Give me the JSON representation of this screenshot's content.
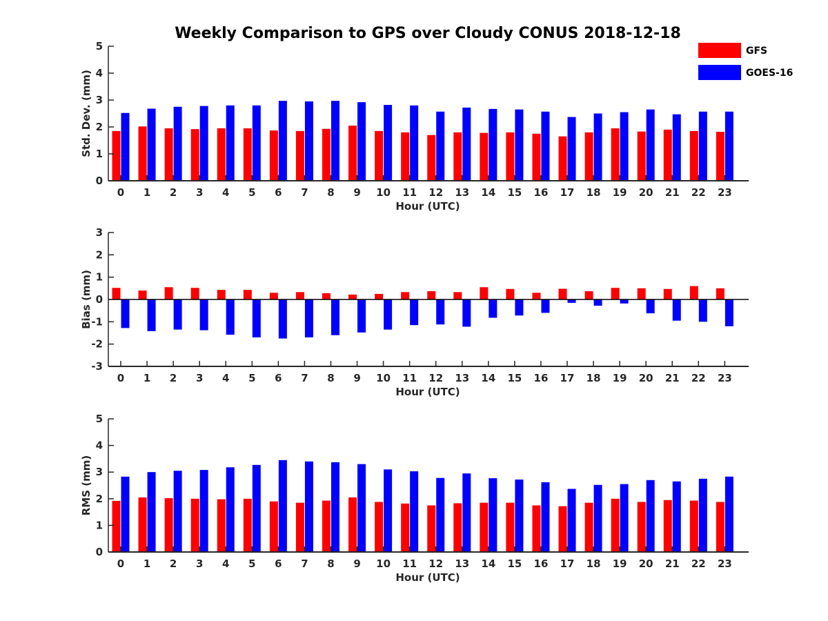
{
  "figure": {
    "title": "Weekly Comparison to GPS over Cloudy CONUS 2018-12-18"
  },
  "legend": {
    "items": [
      {
        "label": "GFS",
        "color": "#ff0000"
      },
      {
        "label": "GOES-16",
        "color": "#0000ff"
      }
    ],
    "position": "top-right"
  },
  "chart_data": [
    {
      "type": "bar",
      "xlabel": "Hour (UTC)",
      "ylabel": "Std. Dev. (mm)",
      "ylim": [
        0,
        5
      ],
      "yticks": [
        0,
        1,
        2,
        3,
        4,
        5
      ],
      "categories": [
        "0",
        "1",
        "2",
        "3",
        "4",
        "5",
        "6",
        "7",
        "8",
        "9",
        "10",
        "11",
        "12",
        "13",
        "14",
        "15",
        "16",
        "17",
        "18",
        "19",
        "20",
        "21",
        "22",
        "23"
      ],
      "series": [
        {
          "name": "GFS",
          "color": "#ff0000",
          "values": [
            1.85,
            2.02,
            1.95,
            1.92,
            1.95,
            1.95,
            1.87,
            1.85,
            1.93,
            2.05,
            1.85,
            1.8,
            1.7,
            1.8,
            1.78,
            1.8,
            1.75,
            1.65,
            1.8,
            1.95,
            1.83,
            1.9,
            1.85,
            1.82
          ]
        },
        {
          "name": "GOES-16",
          "color": "#0000ff",
          "values": [
            2.52,
            2.68,
            2.75,
            2.78,
            2.8,
            2.8,
            2.97,
            2.95,
            2.97,
            2.92,
            2.82,
            2.8,
            2.57,
            2.72,
            2.67,
            2.65,
            2.57,
            2.37,
            2.5,
            2.55,
            2.65,
            2.47,
            2.57,
            2.57
          ]
        }
      ]
    },
    {
      "type": "bar",
      "xlabel": "Hour (UTC)",
      "ylabel": "Bias (mm)",
      "ylim": [
        -3,
        3
      ],
      "yticks": [
        -3,
        -2,
        -1,
        0,
        1,
        2,
        3
      ],
      "categories": [
        "0",
        "1",
        "2",
        "3",
        "4",
        "5",
        "6",
        "7",
        "8",
        "9",
        "10",
        "11",
        "12",
        "13",
        "14",
        "15",
        "16",
        "17",
        "18",
        "19",
        "20",
        "21",
        "22",
        "23"
      ],
      "series": [
        {
          "name": "GFS",
          "color": "#ff0000",
          "values": [
            0.52,
            0.4,
            0.55,
            0.52,
            0.43,
            0.43,
            0.3,
            0.33,
            0.28,
            0.22,
            0.25,
            0.33,
            0.37,
            0.33,
            0.55,
            0.47,
            0.3,
            0.48,
            0.37,
            0.52,
            0.5,
            0.47,
            0.6,
            0.5
          ]
        },
        {
          "name": "GOES-16",
          "color": "#0000ff",
          "values": [
            -1.28,
            -1.42,
            -1.35,
            -1.38,
            -1.58,
            -1.7,
            -1.75,
            -1.7,
            -1.6,
            -1.48,
            -1.35,
            -1.15,
            -1.12,
            -1.22,
            -0.82,
            -0.72,
            -0.6,
            -0.15,
            -0.28,
            -0.18,
            -0.62,
            -0.95,
            -1.0,
            -1.2
          ]
        }
      ]
    },
    {
      "type": "bar",
      "xlabel": "Hour (UTC)",
      "ylabel": "RMS (mm)",
      "ylim": [
        0,
        5
      ],
      "yticks": [
        0,
        1,
        2,
        3,
        4,
        5
      ],
      "categories": [
        "0",
        "1",
        "2",
        "3",
        "4",
        "5",
        "6",
        "7",
        "8",
        "9",
        "10",
        "11",
        "12",
        "13",
        "14",
        "15",
        "16",
        "17",
        "18",
        "19",
        "20",
        "21",
        "22",
        "23"
      ],
      "series": [
        {
          "name": "GFS",
          "color": "#ff0000",
          "values": [
            1.92,
            2.05,
            2.02,
            2.0,
            1.98,
            2.0,
            1.9,
            1.85,
            1.93,
            2.05,
            1.88,
            1.82,
            1.75,
            1.83,
            1.85,
            1.85,
            1.75,
            1.72,
            1.85,
            2.0,
            1.88,
            1.95,
            1.93,
            1.88
          ]
        },
        {
          "name": "GOES-16",
          "color": "#0000ff",
          "values": [
            2.83,
            3.0,
            3.05,
            3.08,
            3.18,
            3.27,
            3.45,
            3.4,
            3.37,
            3.3,
            3.1,
            3.03,
            2.78,
            2.95,
            2.77,
            2.72,
            2.62,
            2.37,
            2.52,
            2.55,
            2.7,
            2.65,
            2.75,
            2.83
          ]
        }
      ]
    }
  ]
}
